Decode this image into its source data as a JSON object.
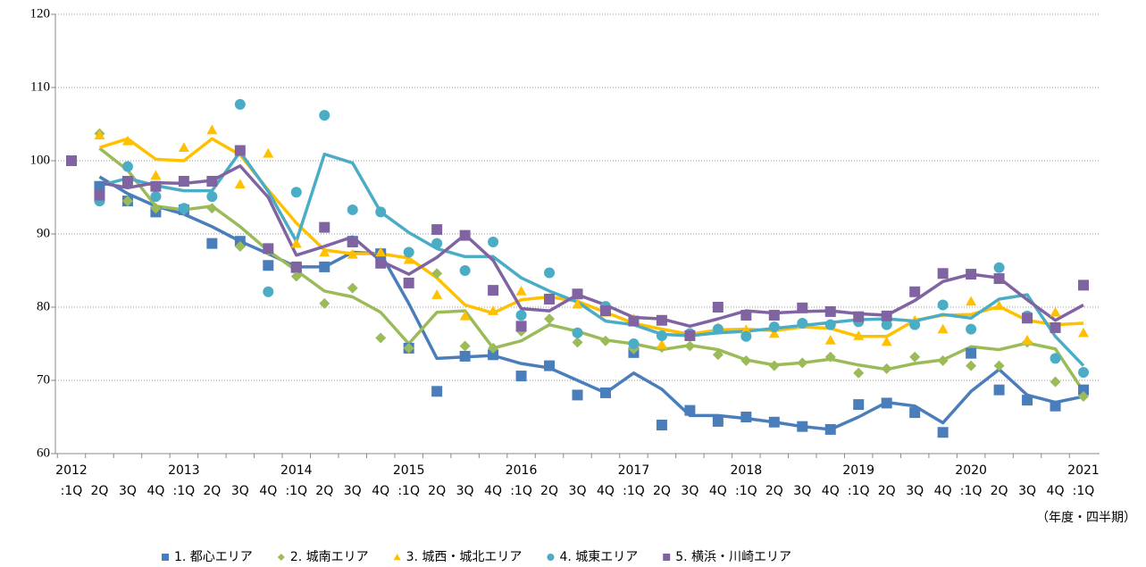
{
  "chart_data": {
    "type": "line",
    "categories": [
      ":1Q",
      "2Q",
      "3Q",
      "4Q",
      ":1Q",
      "2Q",
      "3Q",
      "4Q",
      ":1Q",
      "2Q",
      "3Q",
      "4Q",
      ":1Q",
      "2Q",
      "3Q",
      "4Q",
      ":1Q",
      "2Q",
      "3Q",
      "4Q",
      ":1Q",
      "2Q",
      "3Q",
      "4Q",
      ":1Q",
      "2Q",
      "3Q",
      "4Q",
      ":1Q",
      "2Q",
      "3Q",
      "4Q",
      ":1Q",
      "2Q",
      "3Q",
      "4Q",
      ":1Q"
    ],
    "years": [
      "2012",
      null,
      null,
      null,
      "2013",
      null,
      null,
      null,
      "2014",
      null,
      null,
      null,
      "2015",
      null,
      null,
      null,
      "2016",
      null,
      null,
      null,
      "2017",
      null,
      null,
      null,
      "2018",
      null,
      null,
      null,
      "2019",
      null,
      null,
      null,
      "2020",
      null,
      null,
      null,
      "2021"
    ],
    "x_unit_label": "（年度・四半期）",
    "ylim": [
      60,
      120
    ],
    "yticks": [
      60,
      70,
      80,
      90,
      100,
      110,
      120
    ],
    "grid": true,
    "legend": "bottom",
    "series": [
      {
        "name": "1. 都心エリア",
        "color": "#4a7ebb",
        "marker": "square",
        "values": [
          100,
          96.5,
          94.5,
          93.0,
          93.3,
          88.7,
          89,
          85.7,
          85.4,
          85.5,
          89,
          87.3,
          74.4,
          68.5,
          73.3,
          73.5,
          70.6,
          72,
          68,
          68.3,
          73.8,
          63.9,
          65.9,
          64.4,
          65,
          64.3,
          63.7,
          63.3,
          66.7,
          66.9,
          65.6,
          62.9,
          73.7,
          68.7,
          67.3,
          66.5,
          68.7
        ],
        "trend": [
          null,
          97.8,
          95.5,
          93.8,
          92.7,
          91,
          89,
          87.3,
          85.5,
          85.5,
          87.5,
          87.3,
          80.5,
          73,
          73.2,
          73.4,
          72.3,
          71.7,
          70,
          68.3,
          71,
          68.8,
          65.2,
          65.2,
          64.8,
          64.3,
          63.7,
          63.3,
          65,
          67,
          66.5,
          64.2,
          68.5,
          71.5,
          68,
          67,
          67.8
        ]
      },
      {
        "name": "2. 城南エリア",
        "color": "#9bbb59",
        "marker": "diamond",
        "values": [
          100,
          103.7,
          94.5,
          93.5,
          93.3,
          93.5,
          88.3,
          87.7,
          84.2,
          80.5,
          82.6,
          75.8,
          74.4,
          84.6,
          74.7,
          74.4,
          76.7,
          78.4,
          75.2,
          75.4,
          74.3,
          74.5,
          74.7,
          73.5,
          72.7,
          72,
          72.4,
          73.2,
          71,
          71.6,
          73.2,
          72.7,
          72,
          72,
          75.2,
          69.8,
          67.8
        ],
        "trend": [
          null,
          101.7,
          98.7,
          93.8,
          93.3,
          93.8,
          91,
          87.7,
          85,
          82.2,
          81.4,
          79.3,
          75,
          79.3,
          79.5,
          74.4,
          75.4,
          77.6,
          76.7,
          75.5,
          75,
          74.2,
          74.8,
          74.2,
          72.8,
          72.1,
          72.4,
          72.9,
          72.1,
          71.5,
          72.3,
          72.8,
          74.6,
          74.2,
          75.1,
          74.3,
          68.5
        ]
      },
      {
        "name": "3. 城西・城北エリア",
        "color": "#ffc000",
        "marker": "triangle",
        "values": [
          100,
          103.5,
          102.7,
          98,
          101.8,
          104.2,
          96.8,
          101,
          88.7,
          87.5,
          87.2,
          87.5,
          86.5,
          81.7,
          78.8,
          79.5,
          82.2,
          81.2,
          80.4,
          79.3,
          78.4,
          74.9,
          76.1,
          77.2,
          76.9,
          76.4,
          77.7,
          75.5,
          76.1,
          75.3,
          78.2,
          77,
          80.8,
          80.2,
          75.5,
          79.3,
          76.5
        ],
        "trend": [
          null,
          101.8,
          103,
          100.2,
          100,
          103,
          100.8,
          96,
          91.5,
          87.8,
          87.3,
          87.3,
          86.7,
          84,
          80.3,
          79.2,
          81,
          81.4,
          80.8,
          79.3,
          77.8,
          77,
          76.3,
          76.9,
          77,
          76.8,
          77.3,
          77.1,
          76,
          76,
          78.2,
          78.9,
          79,
          80.1,
          78.2,
          77.6,
          77.8
        ]
      },
      {
        "name": "4. 城東エリア",
        "color": "#4bacc6",
        "marker": "circle",
        "values": [
          100,
          94.5,
          99.2,
          95.1,
          93.5,
          95.1,
          107.7,
          82.1,
          95.7,
          106.2,
          93.3,
          93,
          87.5,
          88.7,
          85,
          88.9,
          78.9,
          84.7,
          76.5,
          80.1,
          75,
          76.1,
          76.4,
          77,
          76,
          77.3,
          77.8,
          77.6,
          78,
          77.6,
          77.6,
          80.3,
          77,
          85.4,
          78.8,
          73,
          71.1
        ],
        "trend": [
          null,
          96.6,
          97.6,
          96.6,
          95.9,
          95.9,
          101.2,
          95.8,
          89,
          100.9,
          99.7,
          93,
          90.2,
          88,
          86.9,
          86.9,
          84,
          82.2,
          80.7,
          78.1,
          77.6,
          76.3,
          76.1,
          76.5,
          76.7,
          77.1,
          77.5,
          77.9,
          78.3,
          78.4,
          78.1,
          79,
          78.5,
          81.1,
          81.7,
          76,
          72
        ]
      },
      {
        "name": "5. 横浜・川崎エリア",
        "color": "#8064a2",
        "marker": "square",
        "values": [
          100,
          95.3,
          97.2,
          96.5,
          97.2,
          97.2,
          101.4,
          88,
          85.5,
          90.9,
          88.9,
          86,
          83.3,
          90.6,
          89.8,
          82.3,
          77.4,
          81.1,
          81.8,
          79.5,
          78.1,
          78.2,
          76.1,
          80,
          78.9,
          78.9,
          79.9,
          79.4,
          78.7,
          78.8,
          82.1,
          84.6,
          84.5,
          83.9,
          78.5,
          77.2,
          83
        ],
        "trend": [
          null,
          97,
          96.3,
          97,
          96.9,
          97.3,
          99.3,
          95,
          87.1,
          88.3,
          89.6,
          86.3,
          84.5,
          86.8,
          89.9,
          86.4,
          79.8,
          79.5,
          81.7,
          80.3,
          78.6,
          78.4,
          77.4,
          78.4,
          79.5,
          79.2,
          79.4,
          79.5,
          79.1,
          78.9,
          80.9,
          83.5,
          84.5,
          84,
          81,
          78.2,
          80.3
        ]
      }
    ]
  }
}
